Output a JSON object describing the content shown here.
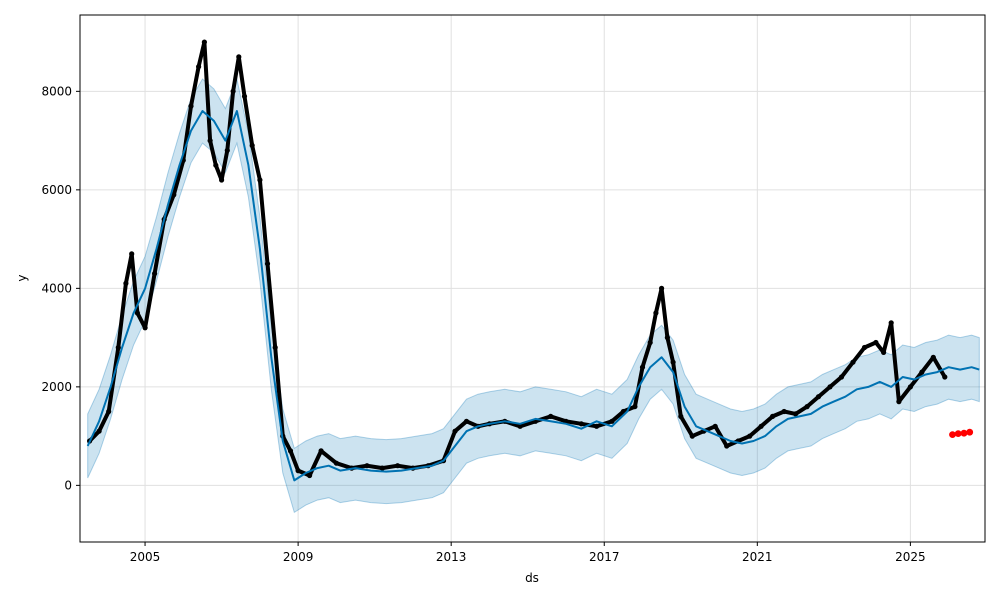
{
  "chart_data": {
    "type": "line",
    "xlabel": "ds",
    "ylabel": "y",
    "xlim": [
      2003.3,
      2026.95
    ],
    "ylim": [
      -1150,
      9550
    ],
    "grid": true,
    "x_ticks": [
      2005,
      2009,
      2013,
      2017,
      2021,
      2025
    ],
    "x_tick_labels": [
      "2005",
      "2009",
      "2013",
      "2017",
      "2021",
      "2025"
    ],
    "y_ticks": [
      0,
      2000,
      4000,
      6000,
      8000
    ],
    "y_tick_labels": [
      "0",
      "2000",
      "4000",
      "6000",
      "8000"
    ],
    "colors": {
      "forecast": "#0072B2",
      "uncertainty": "#0072B2",
      "observed": "#000000",
      "highlight": "#ff0000",
      "grid": "#e0e0e0"
    },
    "interval_half_width": 650,
    "forecast_x": [
      2003.5,
      2003.8,
      2004.1,
      2004.4,
      2004.7,
      2005.0,
      2005.3,
      2005.6,
      2005.9,
      2006.2,
      2006.5,
      2006.8,
      2007.1,
      2007.4,
      2007.7,
      2008.0,
      2008.3,
      2008.6,
      2008.9,
      2009.2,
      2009.5,
      2009.8,
      2010.1,
      2010.5,
      2010.9,
      2011.3,
      2011.7,
      2012.1,
      2012.5,
      2012.8,
      2013.1,
      2013.4,
      2013.7,
      2014.0,
      2014.4,
      2014.8,
      2015.2,
      2015.6,
      2016.0,
      2016.4,
      2016.8,
      2017.2,
      2017.6,
      2017.9,
      2018.2,
      2018.5,
      2018.8,
      2019.1,
      2019.4,
      2019.7,
      2020.0,
      2020.3,
      2020.6,
      2020.9,
      2021.2,
      2021.5,
      2021.8,
      2022.1,
      2022.4,
      2022.7,
      2023.0,
      2023.3,
      2023.6,
      2023.9,
      2024.2,
      2024.5,
      2024.8,
      2025.1,
      2025.4,
      2025.7,
      2026.0,
      2026.3,
      2026.6,
      2026.8
    ],
    "forecast_y": [
      800,
      1300,
      2000,
      2800,
      3500,
      4000,
      4800,
      5700,
      6500,
      7200,
      7600,
      7400,
      7000,
      7600,
      6500,
      4800,
      2600,
      900,
      100,
      250,
      350,
      400,
      300,
      350,
      300,
      280,
      300,
      350,
      400,
      500,
      800,
      1100,
      1200,
      1250,
      1300,
      1250,
      1350,
      1300,
      1250,
      1150,
      1300,
      1200,
      1500,
      2000,
      2400,
      2600,
      2300,
      1600,
      1200,
      1100,
      1000,
      900,
      850,
      900,
      1000,
      1200,
      1350,
      1400,
      1450,
      1600,
      1700,
      1800,
      1950,
      2000,
      2100,
      2000,
      2200,
      2150,
      2250,
      2300,
      2400,
      2350,
      2400,
      2350
    ],
    "observed_x": [
      2003.55,
      2003.8,
      2004.05,
      2004.3,
      2004.5,
      2004.65,
      2004.8,
      2005.0,
      2005.25,
      2005.5,
      2005.75,
      2006.0,
      2006.2,
      2006.4,
      2006.55,
      2006.7,
      2006.85,
      2007.0,
      2007.15,
      2007.3,
      2007.45,
      2007.6,
      2007.8,
      2008.0,
      2008.2,
      2008.4,
      2008.6,
      2008.8,
      2009.0,
      2009.3,
      2009.6,
      2010.0,
      2010.4,
      2010.8,
      2011.2,
      2011.6,
      2012.0,
      2012.4,
      2012.8,
      2013.1,
      2013.4,
      2013.7,
      2014.0,
      2014.4,
      2014.8,
      2015.2,
      2015.6,
      2016.0,
      2016.4,
      2016.8,
      2017.2,
      2017.5,
      2017.8,
      2018.0,
      2018.2,
      2018.35,
      2018.5,
      2018.65,
      2018.8,
      2019.0,
      2019.3,
      2019.6,
      2019.9,
      2020.2,
      2020.5,
      2020.8,
      2021.1,
      2021.4,
      2021.7,
      2022.0,
      2022.3,
      2022.6,
      2022.9,
      2023.2,
      2023.5,
      2023.8,
      2024.1,
      2024.3,
      2024.5,
      2024.7,
      2025.0,
      2025.3,
      2025.6,
      2025.9
    ],
    "observed_y": [
      900,
      1100,
      1500,
      2800,
      4100,
      4700,
      3500,
      3200,
      4300,
      5400,
      5900,
      6600,
      7700,
      8500,
      9000,
      7000,
      6500,
      6200,
      6800,
      8000,
      8700,
      7900,
      6900,
      6200,
      4500,
      2800,
      1000,
      700,
      300,
      200,
      700,
      450,
      350,
      400,
      350,
      400,
      350,
      400,
      500,
      1100,
      1300,
      1200,
      1250,
      1300,
      1200,
      1300,
      1400,
      1300,
      1250,
      1200,
      1300,
      1500,
      1600,
      2400,
      2900,
      3500,
      4000,
      3000,
      2500,
      1400,
      1000,
      1100,
      1200,
      800,
      900,
      1000,
      1200,
      1400,
      1500,
      1450,
      1600,
      1800,
      2000,
      2200,
      2500,
      2800,
      2900,
      2700,
      3300,
      1700,
      2000,
      2300,
      2600,
      2200
    ],
    "highlight_x": [
      2026.1,
      2026.25,
      2026.4,
      2026.55
    ],
    "highlight_y": [
      1030,
      1050,
      1060,
      1080
    ]
  }
}
